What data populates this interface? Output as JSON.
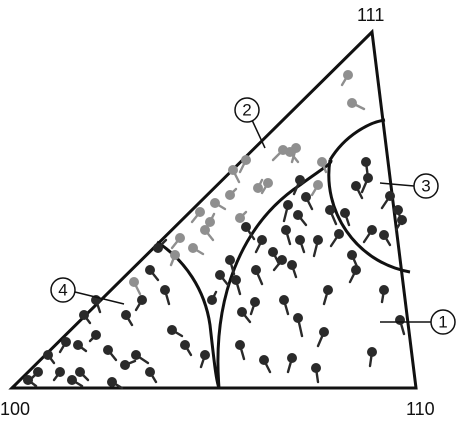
{
  "corners": {
    "top": "111",
    "bottom_left": "100",
    "bottom_right": "110"
  },
  "regions": [
    {
      "label": "1"
    },
    {
      "label": "2"
    },
    {
      "label": "3"
    },
    {
      "label": "4"
    }
  ],
  "colors": {
    "outline": "#111111",
    "dark_marker": "#2a2a2a",
    "light_marker": "#8f8f8f"
  }
}
